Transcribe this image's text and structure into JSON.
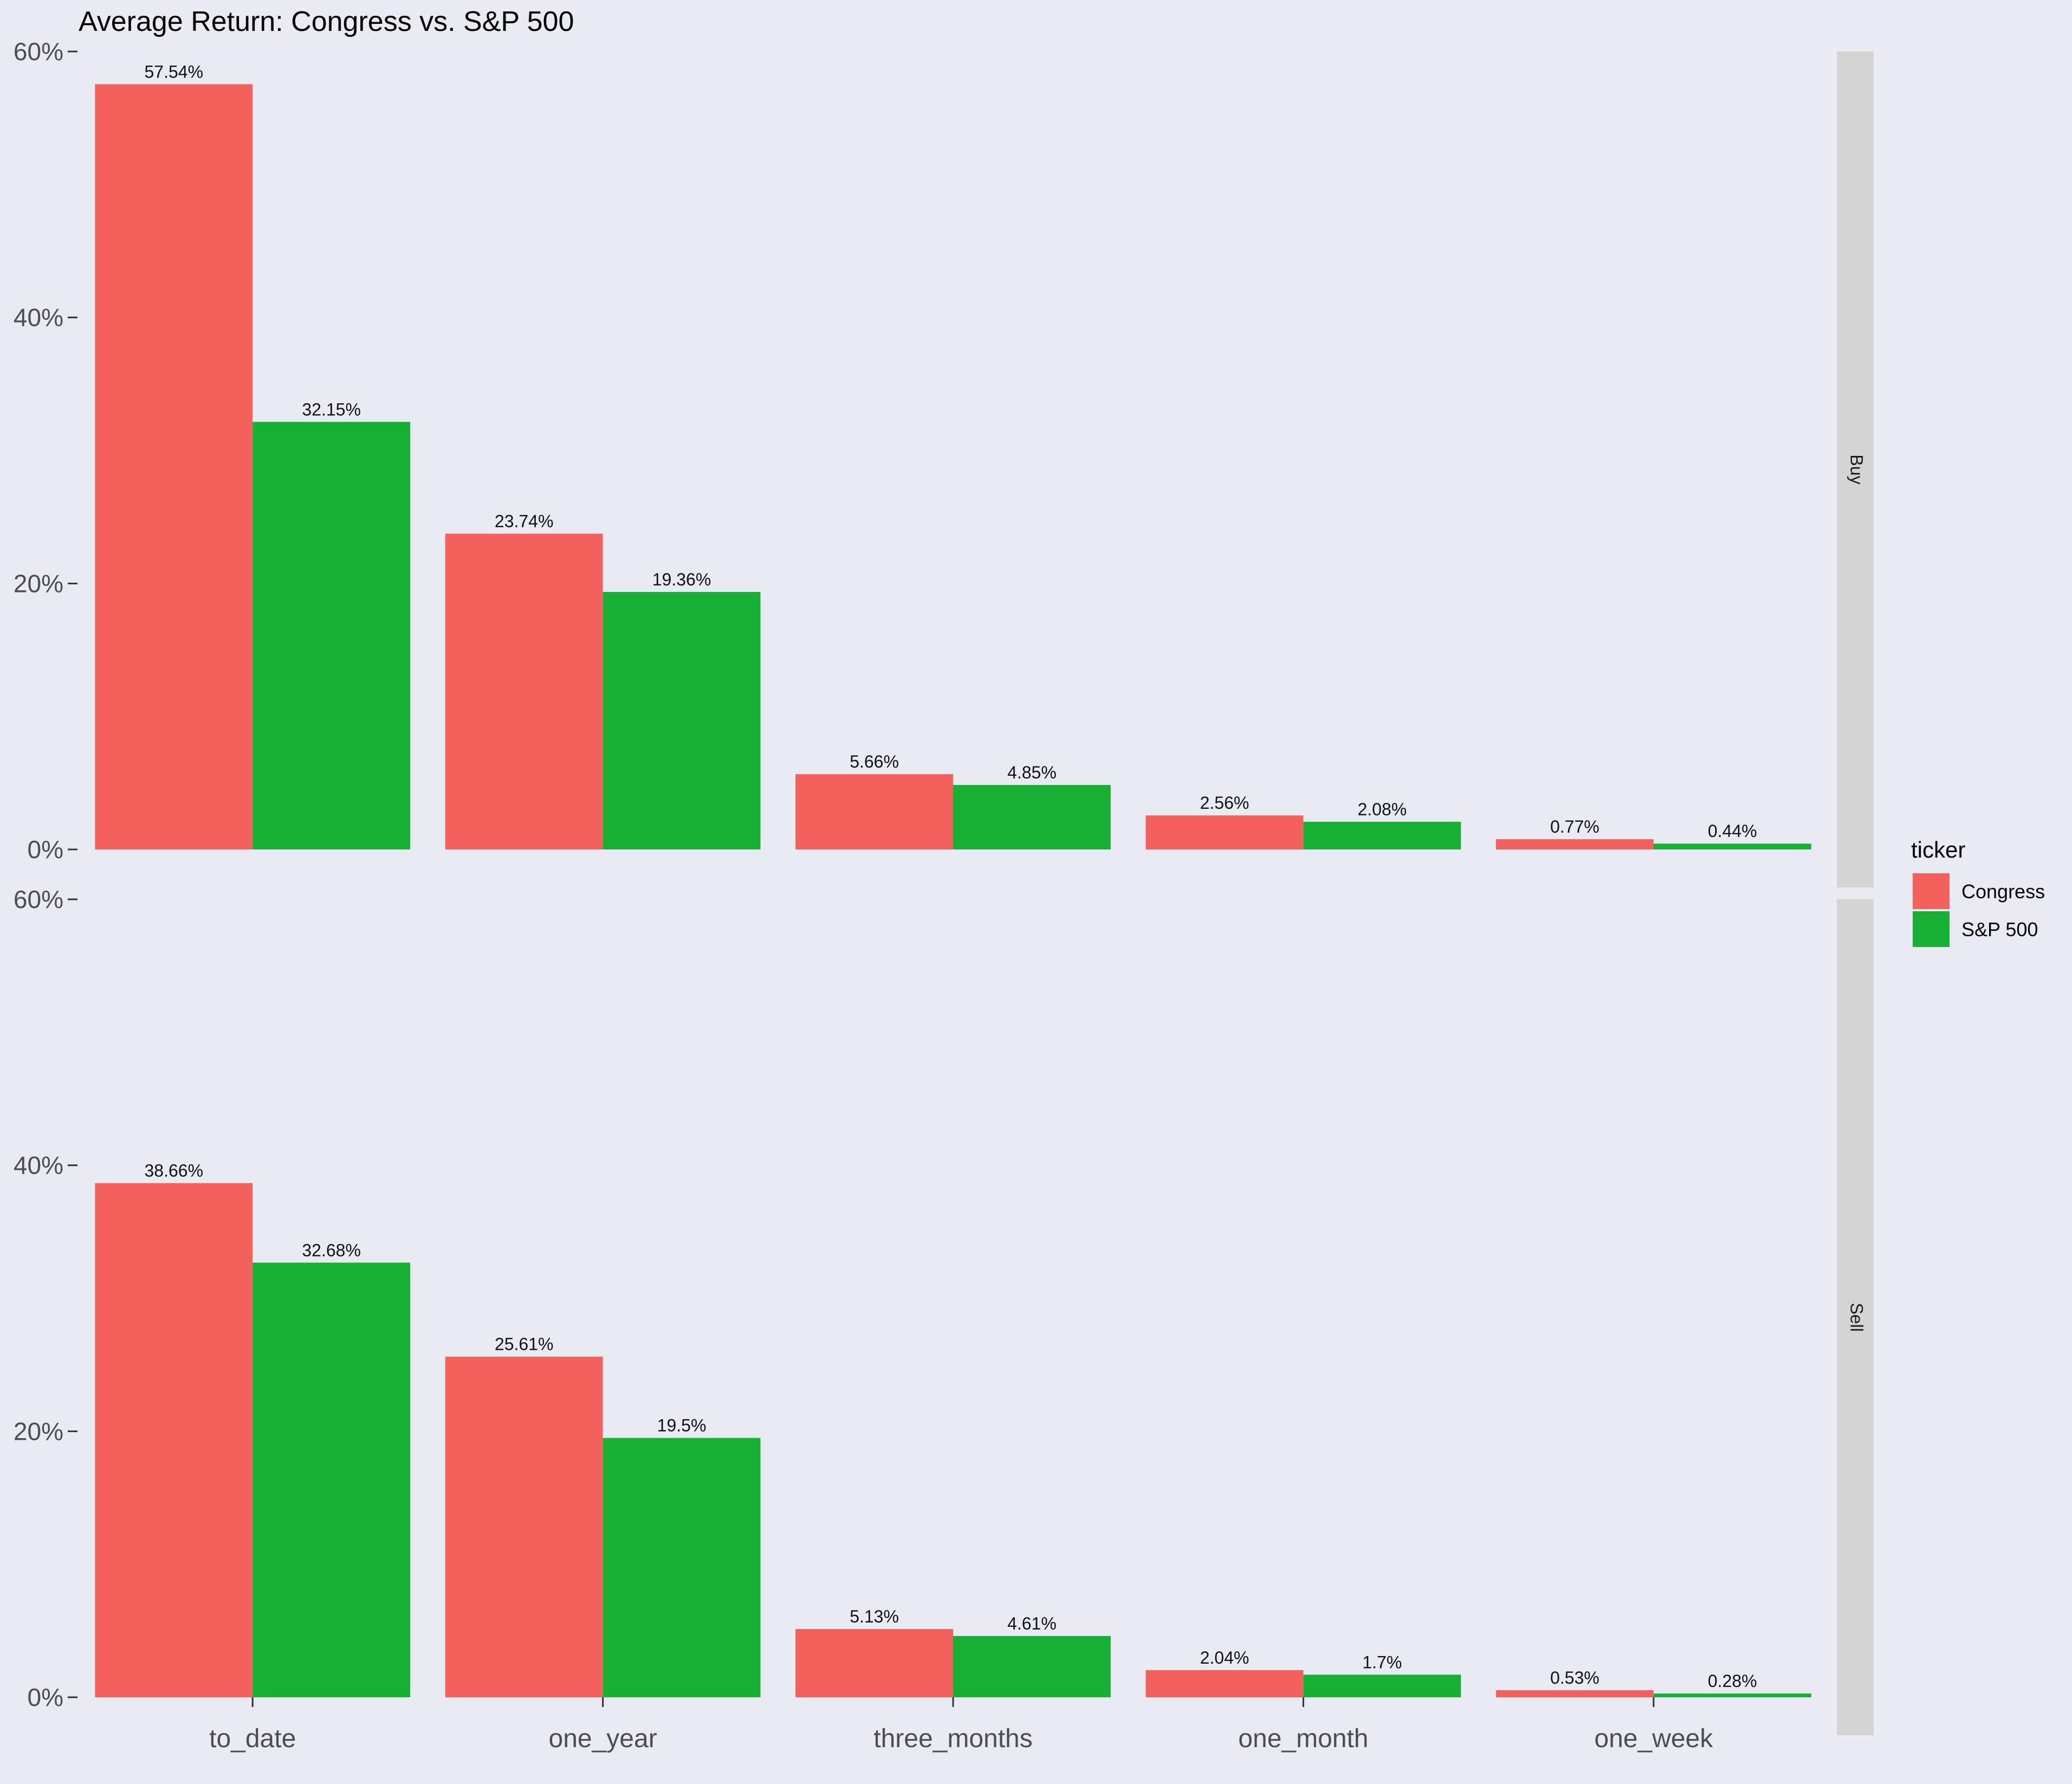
{
  "chart_data": {
    "type": "bar",
    "title": "Average Return: Congress vs. S&P 500",
    "xlabel": "",
    "ylabel": "",
    "categories": [
      "to_date",
      "one_year",
      "three_months",
      "one_month",
      "one_week"
    ],
    "ylim": [
      0,
      60
    ],
    "yticks": [
      "0%",
      "20%",
      "40%",
      "60%"
    ],
    "ytick_values": [
      0,
      20,
      40,
      60
    ],
    "grid": false,
    "legend": {
      "title": "ticker",
      "position": "right",
      "entries": [
        "Congress",
        "S&P 500"
      ]
    },
    "colors": {
      "Congress": "#f4615c",
      "S&P 500": "#17b035"
    },
    "panels": [
      {
        "strip": "Buy",
        "series": [
          {
            "name": "Congress",
            "values": [
              57.54,
              23.74,
              5.66,
              2.56,
              0.77
            ],
            "labels": [
              "57.54%",
              "23.74%",
              "5.66%",
              "2.56%",
              "0.77%"
            ]
          },
          {
            "name": "S&P 500",
            "values": [
              32.15,
              19.36,
              4.85,
              2.08,
              0.44
            ],
            "labels": [
              "32.15%",
              "19.36%",
              "4.85%",
              "2.08%",
              "0.44%"
            ]
          }
        ]
      },
      {
        "strip": "Sell",
        "series": [
          {
            "name": "Congress",
            "values": [
              38.66,
              25.61,
              5.13,
              2.04,
              0.53
            ],
            "labels": [
              "38.66%",
              "25.61%",
              "5.13%",
              "2.04%",
              "0.53%"
            ]
          },
          {
            "name": "S&P 500",
            "values": [
              32.68,
              19.5,
              4.61,
              1.7,
              0.28
            ],
            "labels": [
              "32.68%",
              "19.5%",
              "4.61%",
              "1.7%",
              "0.28%"
            ]
          }
        ]
      }
    ]
  }
}
